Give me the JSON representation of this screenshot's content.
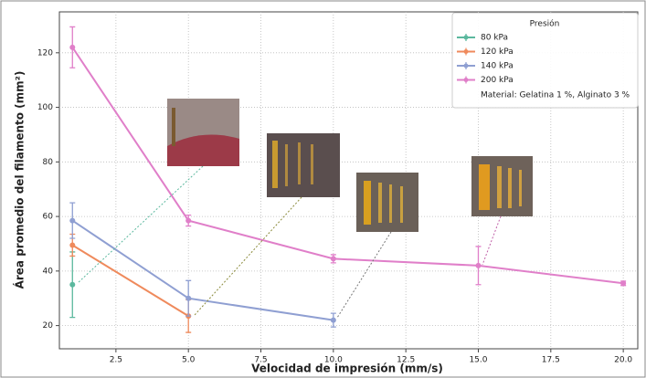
{
  "chart_data": {
    "type": "line",
    "xlabel": "Velocidad de impresión (mm/s)",
    "ylabel": "Área promedio del filamento (mm²)",
    "legend_title": "Presión",
    "legend_position": "upper right",
    "annotation": "Material: Gelatina 1 %, Alginato 3 %",
    "grid": true,
    "xlim": [
      0.55,
      20.5
    ],
    "ylim": [
      11.5,
      135
    ],
    "xticks": [
      2.5,
      {
        "value": 5,
        "label": "5.0"
      },
      7.5,
      {
        "value": 10,
        "label": "10.0"
      },
      12.5,
      {
        "value": 15,
        "label": "15.0"
      },
      17.5,
      {
        "value": 20,
        "label": "20.0"
      }
    ],
    "yticks": [
      20,
      40,
      60,
      80,
      100,
      120
    ],
    "series": [
      {
        "name": "80 kPa",
        "color": "#5bb89e",
        "x": [
          1
        ],
        "values": [
          35
        ],
        "errors": [
          12
        ]
      },
      {
        "name": "120 kPa",
        "color": "#ef8a5c",
        "x": [
          1,
          5
        ],
        "values": [
          49.5,
          23.5
        ],
        "errors": [
          4,
          6
        ]
      },
      {
        "name": "140 kPa",
        "color": "#8f9fd2",
        "x": [
          1,
          5,
          10
        ],
        "values": [
          58.5,
          30,
          22
        ],
        "errors": [
          6.5,
          6.5,
          2.5
        ]
      },
      {
        "name": "200 kPa",
        "color": "#e07fc9",
        "x": [
          1,
          5,
          10,
          15,
          20
        ],
        "values": [
          122,
          58.5,
          44.5,
          42,
          35.5
        ],
        "errors": [
          7.5,
          2,
          1.5,
          7,
          0.8
        ]
      }
    ]
  }
}
